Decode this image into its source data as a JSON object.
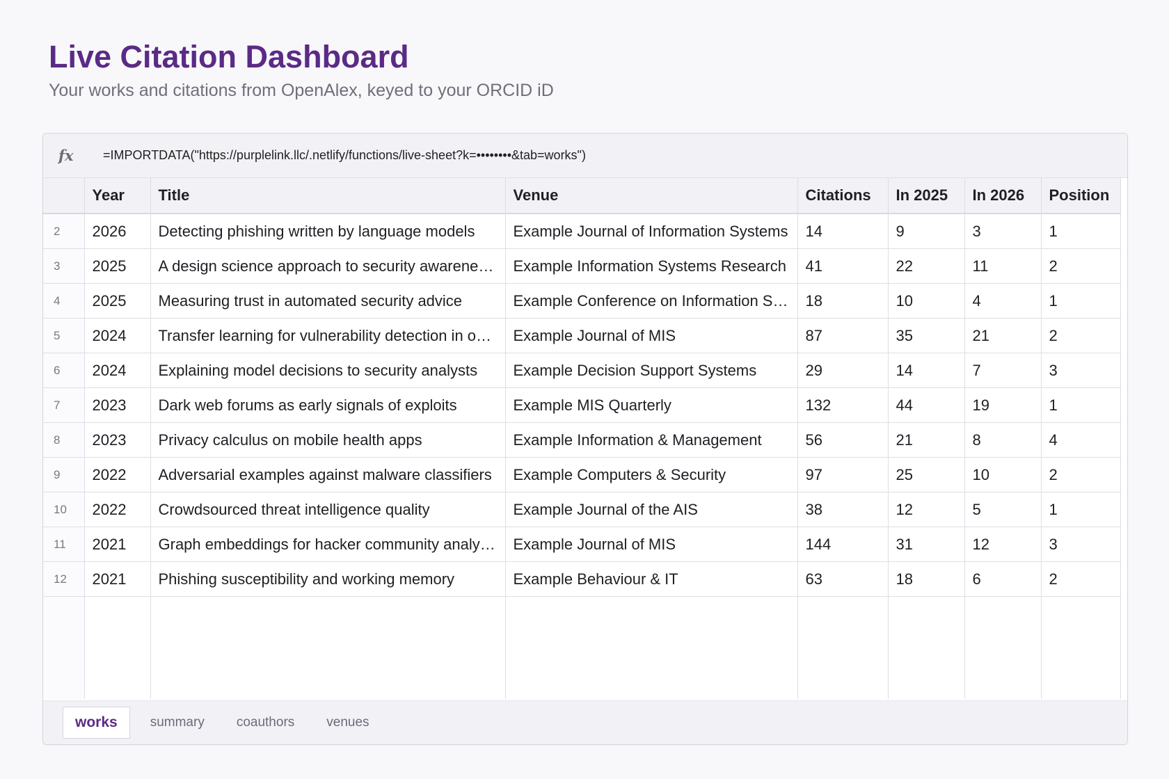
{
  "header": {
    "title": "Live Citation Dashboard",
    "subtitle": "Your works and citations from OpenAlex, keyed to your ORCID iD"
  },
  "formula_bar": {
    "fx_label": "fx",
    "formula": "=IMPORTDATA(\"https://purplelink.llc/.netlify/functions/live-sheet?k=••••••••&tab=works\")"
  },
  "table": {
    "columns": [
      "Year",
      "Title",
      "Venue",
      "Citations",
      "In 2025",
      "In 2026",
      "Position"
    ],
    "rows": [
      {
        "num": "2",
        "year": "2026",
        "title": "Detecting phishing written by language models",
        "venue": "Example Journal of Information Systems",
        "citations": "14",
        "in2025": "9",
        "in2026": "3",
        "position": "1"
      },
      {
        "num": "3",
        "year": "2025",
        "title": "A design science approach to security awareness training",
        "venue": "Example Information Systems Research",
        "citations": "41",
        "in2025": "22",
        "in2026": "11",
        "position": "2"
      },
      {
        "num": "4",
        "year": "2025",
        "title": "Measuring trust in automated security advice",
        "venue": "Example Conference on Information Systems",
        "citations": "18",
        "in2025": "10",
        "in2026": "4",
        "position": "1"
      },
      {
        "num": "5",
        "year": "2024",
        "title": "Transfer learning for vulnerability detection in open source",
        "venue": "Example Journal of MIS",
        "citations": "87",
        "in2025": "35",
        "in2026": "21",
        "position": "2"
      },
      {
        "num": "6",
        "year": "2024",
        "title": "Explaining model decisions to security analysts",
        "venue": "Example Decision Support Systems",
        "citations": "29",
        "in2025": "14",
        "in2026": "7",
        "position": "3"
      },
      {
        "num": "7",
        "year": "2023",
        "title": "Dark web forums as early signals of exploits",
        "venue": "Example MIS Quarterly",
        "citations": "132",
        "in2025": "44",
        "in2026": "19",
        "position": "1"
      },
      {
        "num": "8",
        "year": "2023",
        "title": "Privacy calculus on mobile health apps",
        "venue": "Example Information & Management",
        "citations": "56",
        "in2025": "21",
        "in2026": "8",
        "position": "4"
      },
      {
        "num": "9",
        "year": "2022",
        "title": "Adversarial examples against malware classifiers",
        "venue": "Example Computers & Security",
        "citations": "97",
        "in2025": "25",
        "in2026": "10",
        "position": "2"
      },
      {
        "num": "10",
        "year": "2022",
        "title": "Crowdsourced threat intelligence quality",
        "venue": "Example Journal of the AIS",
        "citations": "38",
        "in2025": "12",
        "in2026": "5",
        "position": "1"
      },
      {
        "num": "11",
        "year": "2021",
        "title": "Graph embeddings for hacker community analysis",
        "venue": "Example Journal of MIS",
        "citations": "144",
        "in2025": "31",
        "in2026": "12",
        "position": "3"
      },
      {
        "num": "12",
        "year": "2021",
        "title": "Phishing susceptibility and working memory",
        "venue": "Example Behaviour & IT",
        "citations": "63",
        "in2025": "18",
        "in2026": "6",
        "position": "2"
      }
    ]
  },
  "tabs": [
    {
      "label": "works",
      "active": true
    },
    {
      "label": "summary",
      "active": false
    },
    {
      "label": "coauthors",
      "active": false
    },
    {
      "label": "venues",
      "active": false
    }
  ]
}
